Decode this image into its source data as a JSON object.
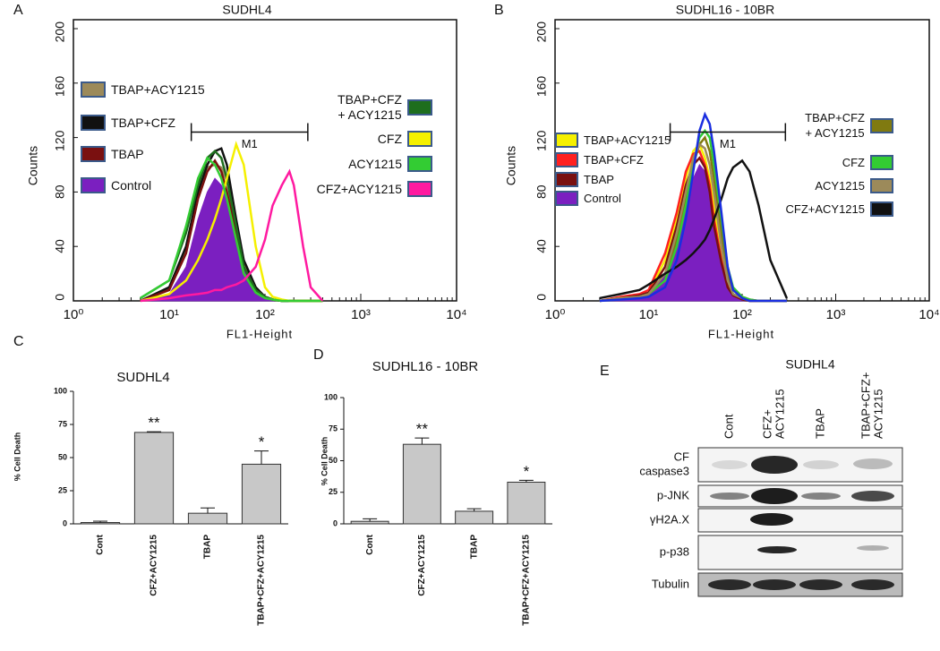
{
  "chart_data": [
    {
      "type": "line",
      "panel": "A",
      "title": "SUDHL4",
      "x_label": "FL1-Height",
      "y_label": "Counts",
      "log_x": true,
      "xlim": [
        1,
        10000
      ],
      "xticks": [
        {
          "value": 1,
          "label": "10⁰"
        },
        {
          "value": 10,
          "label": "10¹"
        },
        {
          "value": 100,
          "label": "10²"
        },
        {
          "value": 1000,
          "label": "10³"
        },
        {
          "value": 10000,
          "label": "10⁴"
        }
      ],
      "ylim": [
        0,
        200
      ],
      "yticks": [
        0,
        40,
        80,
        120,
        160,
        200
      ],
      "gate": {
        "text": "M1",
        "x": [
          17,
          280
        ],
        "y": 124
      },
      "x": [
        5,
        10,
        15,
        20,
        25,
        30,
        35,
        40,
        50,
        60,
        80,
        100,
        120,
        150,
        180,
        200,
        250,
        300,
        400
      ],
      "series": [
        {
          "name": "TBAP+ACY1215",
          "color": "#9c8a5a",
          "values": [
            0,
            8,
            38,
            78,
            98,
            100,
            98,
            88,
            55,
            28,
            9,
            3,
            1,
            0,
            0,
            0,
            0,
            0,
            0
          ]
        },
        {
          "name": "TBAP+CFZ",
          "color": "#111111",
          "values": [
            0,
            10,
            40,
            80,
            100,
            110,
            112,
            100,
            60,
            30,
            10,
            3,
            1,
            0,
            0,
            0,
            0,
            0,
            0
          ]
        },
        {
          "name": "TBAP",
          "color": "#7a1010",
          "values": [
            0,
            8,
            35,
            75,
            95,
            103,
            95,
            80,
            50,
            25,
            8,
            3,
            1,
            0,
            0,
            0,
            0,
            0,
            0
          ]
        },
        {
          "name": "Control",
          "color": "#7b1fc0",
          "fill": true,
          "values": [
            0,
            5,
            25,
            60,
            80,
            90,
            85,
            75,
            50,
            25,
            8,
            3,
            1,
            0,
            0,
            0,
            0,
            0,
            0
          ]
        },
        {
          "name": "TBAP+CFZ\n+ ACY1215",
          "color": "#1e6e1e",
          "values": [
            2,
            15,
            50,
            85,
            105,
            110,
            105,
            90,
            55,
            25,
            8,
            3,
            1,
            0,
            0,
            0,
            0,
            0,
            0
          ]
        },
        {
          "name": "CFZ",
          "color": "#f5f000",
          "values": [
            0,
            5,
            15,
            30,
            45,
            60,
            75,
            90,
            115,
            100,
            40,
            10,
            3,
            1,
            0,
            0,
            0,
            0,
            0
          ]
        },
        {
          "name": "ACY1215",
          "color": "#33cc33",
          "values": [
            2,
            15,
            55,
            90,
            105,
            100,
            90,
            75,
            45,
            20,
            6,
            2,
            1,
            0,
            0,
            0,
            0,
            0,
            0
          ]
        },
        {
          "name": "CFZ+ACY1215",
          "color": "#ff1aa0",
          "values": [
            0,
            2,
            4,
            5,
            6,
            8,
            8,
            10,
            12,
            15,
            25,
            45,
            70,
            85,
            95,
            85,
            40,
            10,
            0
          ]
        }
      ]
    },
    {
      "type": "line",
      "panel": "B",
      "title": "SUDHL16 - 10BR",
      "x_label": "FL1-Height",
      "y_label": "Counts",
      "log_x": true,
      "xlim": [
        1,
        10000
      ],
      "xticks": [
        {
          "value": 1,
          "label": "10⁰"
        },
        {
          "value": 10,
          "label": "10¹"
        },
        {
          "value": 100,
          "label": "10²"
        },
        {
          "value": 1000,
          "label": "10³"
        },
        {
          "value": 10000,
          "label": "10⁴"
        }
      ],
      "ylim": [
        0,
        200
      ],
      "yticks": [
        0,
        40,
        80,
        120,
        160,
        200
      ],
      "gate": {
        "text": "M1",
        "x": [
          17,
          290
        ],
        "y": 124
      },
      "x": [
        3,
        5,
        8,
        10,
        15,
        20,
        25,
        30,
        35,
        40,
        45,
        50,
        60,
        70,
        80,
        100,
        120,
        150,
        200,
        300
      ],
      "series": [
        {
          "name": "TBAP+ACY1215",
          "color": "#f5f000",
          "values": [
            0,
            2,
            3,
            6,
            30,
            60,
            90,
            110,
            115,
            105,
            90,
            70,
            35,
            15,
            5,
            2,
            0,
            0,
            0,
            0
          ]
        },
        {
          "name": "TBAP+CFZ",
          "color": "#ff2020",
          "values": [
            0,
            3,
            5,
            8,
            35,
            65,
            95,
            108,
            110,
            100,
            85,
            60,
            30,
            12,
            4,
            2,
            0,
            0,
            0,
            0
          ]
        },
        {
          "name": "TBAP",
          "color": "#7a1010",
          "values": [
            0,
            2,
            4,
            6,
            25,
            55,
            85,
            100,
            105,
            98,
            80,
            55,
            28,
            10,
            4,
            1,
            0,
            0,
            0,
            0
          ]
        },
        {
          "name": "Control",
          "color": "#7b1fc0",
          "fill": true,
          "values": [
            0,
            2,
            3,
            5,
            20,
            45,
            70,
            90,
            100,
            95,
            80,
            60,
            30,
            15,
            5,
            2,
            0,
            0,
            0,
            0
          ]
        },
        {
          "name": "TBAP+CFZ\n+ ACY1215",
          "color": "#807a10",
          "values": [
            0,
            2,
            3,
            5,
            20,
            45,
            75,
            100,
            115,
            120,
            110,
            90,
            50,
            20,
            8,
            3,
            1,
            0,
            0,
            0
          ]
        },
        {
          "name": "CFZ",
          "color": "#33cc33",
          "values": [
            0,
            2,
            3,
            5,
            15,
            40,
            70,
            100,
            120,
            125,
            120,
            100,
            60,
            25,
            10,
            3,
            1,
            0,
            0,
            0
          ]
        },
        {
          "name": "ACY1215",
          "color": "#9c8a5a",
          "values": [
            0,
            2,
            3,
            5,
            20,
            50,
            80,
            105,
            115,
            112,
            100,
            80,
            40,
            15,
            5,
            2,
            0,
            0,
            0,
            0
          ]
        },
        {
          "name": "CFZ+ACY1215",
          "color": "#111111",
          "values": [
            2,
            5,
            8,
            12,
            20,
            25,
            30,
            35,
            40,
            45,
            52,
            60,
            75,
            90,
            98,
            103,
            95,
            70,
            30,
            2
          ]
        },
        {
          "color": "#1a2ee0",
          "values": [
            0,
            1,
            2,
            3,
            10,
            30,
            60,
            95,
            125,
            137,
            130,
            110,
            65,
            25,
            8,
            2,
            0,
            0,
            0,
            0
          ]
        }
      ]
    },
    {
      "type": "bar",
      "panel": "C",
      "title": "SUDHL4",
      "y_label": "% Cell Death",
      "color": "#c8c8c8",
      "categories": [
        "Cont",
        "CFZ+ACY1215",
        "TBAP",
        "TBAP+CFZ+ACY1215"
      ],
      "values": [
        1,
        69,
        8,
        45
      ],
      "errors": [
        1,
        0.5,
        4,
        10
      ],
      "annotations": [
        null,
        "**",
        null,
        "*"
      ],
      "ylim": [
        0,
        100
      ],
      "yticks": [
        0,
        25,
        50,
        75,
        100
      ]
    },
    {
      "type": "bar",
      "panel": "D",
      "title": "SUDHL16 - 10BR",
      "y_label": "% Cell Death",
      "color": "#c8c8c8",
      "categories": [
        "Cont",
        "CFZ+ACY1215",
        "TBAP",
        "TBAP+CFZ+ACY1215"
      ],
      "values": [
        2,
        63,
        10,
        33
      ],
      "errors": [
        2,
        5,
        2,
        1.5
      ],
      "annotations": [
        null,
        "**",
        null,
        "*"
      ],
      "ylim": [
        0,
        100
      ],
      "yticks": [
        0,
        25,
        50,
        75,
        100
      ]
    }
  ],
  "blot": {
    "panel": "E",
    "title": "SUDHL4",
    "lanes": [
      [
        "Cont"
      ],
      [
        "CFZ+",
        "ACY1215"
      ],
      [
        "TBAP"
      ],
      [
        "TBAP+CFZ+",
        "ACY1215"
      ]
    ],
    "rows": [
      [
        "CF",
        "caspase3"
      ],
      [
        "p-JNK"
      ],
      [
        "γH2A.X"
      ],
      [
        "p-p38"
      ],
      [
        "Tubulin"
      ]
    ]
  }
}
